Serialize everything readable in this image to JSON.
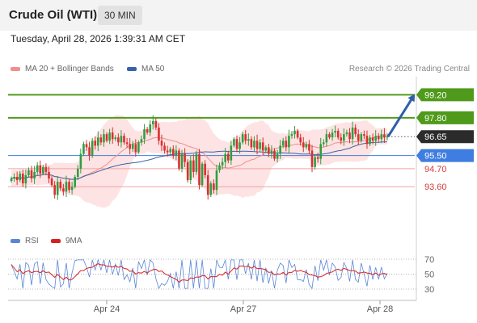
{
  "header": {
    "instrument": "Crude Oil (WTI)",
    "timeframe": "30 MIN",
    "timestamp": "Tuesday, April 28, 2026 1:39:31 AM CET"
  },
  "legend": {
    "ma20": "MA 20 + Bollinger Bands",
    "ma50": "MA 50",
    "rsi": "RSI",
    "ma9": "9MA"
  },
  "copyright": "Research © 2026 Trading Central",
  "colors": {
    "up": "#2f9e41",
    "down": "#d93030",
    "resistance": "#4f9a1a",
    "current": "#2b2b2b",
    "pivot": "#3f7ee0",
    "support": "#f4a2a2",
    "support_text": "#d63a3a",
    "bollinger": "#fde3e3",
    "ma20": "#f28e8e",
    "ma50": "#3a62a8",
    "rsi": "#5a86d6",
    "rsi_ma": "#d62020",
    "arrow": "#2f5fa8"
  },
  "chart_data": [
    {
      "type": "candlestick",
      "name": "price",
      "ylim": [
        91.2,
        100.3
      ],
      "x_ticks": [
        "Apr 24",
        "Apr 27",
        "Apr 28"
      ],
      "levels": [
        {
          "label": "99.20",
          "value": 99.2,
          "kind": "resistance"
        },
        {
          "label": "97.80",
          "value": 97.8,
          "kind": "resistance"
        },
        {
          "label": "96.65",
          "value": 96.65,
          "kind": "current"
        },
        {
          "label": "95.50",
          "value": 95.5,
          "kind": "pivot"
        },
        {
          "label": "94.70",
          "value": 94.7,
          "kind": "support"
        },
        {
          "label": "93.60",
          "value": 93.6,
          "kind": "support"
        }
      ],
      "close": [
        94.1,
        94.2,
        94.0,
        94.4,
        93.8,
        94.3,
        94.6,
        94.1,
        94.5,
        94.9,
        94.4,
        94.8,
        94.5,
        94.1,
        93.7,
        93.1,
        93.9,
        93.5,
        93.3,
        93.9,
        93.4,
        93.6,
        94.2,
        94.7,
        95.6,
        96.2,
        96.0,
        95.5,
        96.4,
        96.1,
        96.6,
        96.3,
        96.8,
        96.4,
        96.9,
        96.5,
        96.6,
        96.3,
        96.7,
        96.3,
        96.2,
        95.9,
        96.2,
        95.7,
        96.3,
        96.5,
        97.1,
        96.9,
        97.4,
        97.6,
        97.2,
        96.4,
        96.1,
        95.8,
        95.7,
        95.9,
        95.5,
        95.8,
        94.7,
        95.6,
        95.1,
        94.0,
        95.2,
        94.5,
        95.6,
        93.7,
        95.0,
        94.3,
        93.1,
        93.8,
        93.4,
        94.6,
        94.9,
        95.1,
        95.6,
        95.2,
        96.1,
        96.5,
        95.9,
        96.3,
        96.8,
        96.4,
        96.5,
        96.0,
        96.4,
        95.9,
        96.3,
        95.8,
        96.0,
        95.6,
        95.8,
        95.3,
        95.6,
        96.1,
        96.4,
        96.0,
        96.7,
        96.8,
        97.0,
        96.6,
        96.3,
        96.0,
        96.2,
        95.8,
        94.8,
        95.4,
        95.3,
        96.2,
        96.3,
        96.8,
        96.6,
        96.9,
        97.0,
        96.6,
        96.4,
        96.8,
        96.9,
        96.5,
        97.2,
        96.8,
        96.4,
        96.8,
        96.7,
        96.2,
        96.6,
        96.4,
        96.7,
        96.5,
        96.8,
        96.6,
        96.65
      ]
    },
    {
      "type": "line",
      "name": "rsi",
      "ylim": [
        30,
        70
      ],
      "y_ticks": [
        70,
        50,
        30
      ],
      "rsi_start": 63,
      "ma_period": 9
    }
  ]
}
